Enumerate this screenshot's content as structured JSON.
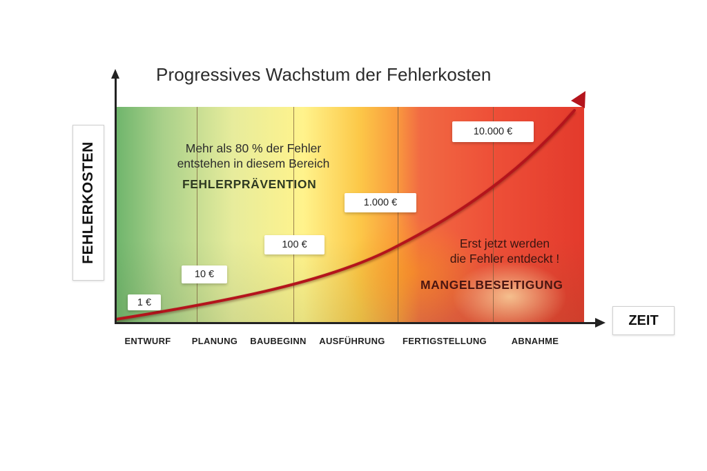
{
  "title": "Progressives Wachstum der Fehlerkosten",
  "axes": {
    "y_label": "FEHLERKOSTEN",
    "x_label": "ZEIT"
  },
  "phases": [
    "ENTWURF",
    "PLANUNG",
    "BAUBEGINN",
    "AUSFÜHRUNG",
    "FERTIGSTELLUNG",
    "ABNAHME"
  ],
  "cost_labels": [
    "1 €",
    "10 €",
    "100 €",
    "1.000 €",
    "10.000 €"
  ],
  "prevention_zone": {
    "note_line1": "Mehr als 80 % der Fehler",
    "note_line2": "entstehen in diesem Bereich",
    "label": "FEHLERPRÄVENTION"
  },
  "defect_zone": {
    "note_line1": "Erst jetzt werden",
    "note_line2": "die Fehler entdeckt !",
    "label": "MANGELBESEITIGUNG"
  },
  "colors": {
    "curve": "#b4141c",
    "prevention_label": "#2f3a22",
    "defect_label": "#4a1510",
    "axis": "#222222"
  }
}
